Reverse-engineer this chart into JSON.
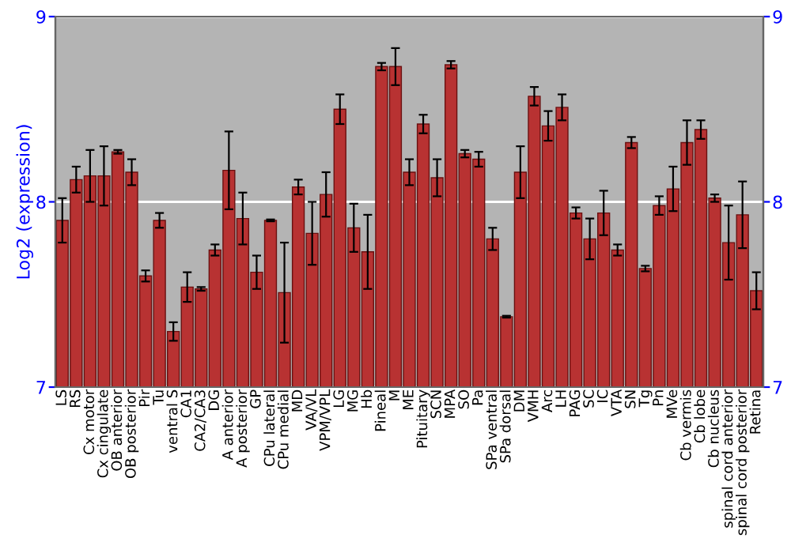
{
  "chart_data": {
    "type": "bar",
    "ylabel": "Log2 (expression)",
    "categories": [
      "LS",
      "RS",
      "Cx motor",
      "Cx cingulate",
      "OB anterior",
      "OB posterior",
      "Pir",
      "Tu",
      "ventral S",
      "CA1",
      "CA2/CA3",
      "DG",
      "A anterior",
      "A posterior",
      "GP",
      "CPu lateral",
      "CPu medial",
      "MD",
      "VA/VL",
      "VPM/VPL",
      "LG",
      "MG",
      "Hb",
      "Pineal",
      "M",
      "ME",
      "Pituitary",
      "SCN",
      "MPA",
      "SO",
      "Pa",
      "SPa ventral",
      "SPa dorsal",
      "DM",
      "VMH",
      "Arc",
      "LH",
      "PAG",
      "SC",
      "IC",
      "VTA",
      "SN",
      "Tg",
      "Pn",
      "MVe",
      "Cb vermis",
      "Cb lobe",
      "Cb nucleus",
      "spinal cord anterior",
      "spinal cord posterior",
      "Retina"
    ],
    "series": [
      {
        "color": "#b83232",
        "values": [
          7.9,
          8.12,
          8.14,
          8.14,
          8.27,
          8.16,
          7.6,
          7.9,
          7.3,
          7.54,
          7.53,
          7.74,
          8.17,
          7.91,
          7.62,
          7.9,
          7.51,
          8.08,
          7.83,
          8.04,
          8.5,
          7.86,
          7.73,
          8.73,
          8.73,
          8.16,
          8.42,
          8.13,
          8.74,
          8.26,
          8.23,
          7.8,
          7.38,
          8.16,
          8.57,
          8.41,
          8.51,
          7.94,
          7.8,
          7.94,
          7.74,
          8.32,
          7.64,
          7.98,
          8.07,
          8.32,
          8.39,
          8.02,
          7.78,
          7.93,
          7.52
        ],
        "errors": [
          0.12,
          0.07,
          0.14,
          0.16,
          0.01,
          0.07,
          0.03,
          0.04,
          0.05,
          0.08,
          0.01,
          0.03,
          0.21,
          0.14,
          0.09,
          0.005,
          0.27,
          0.04,
          0.17,
          0.12,
          0.08,
          0.13,
          0.2,
          0.02,
          0.1,
          0.07,
          0.05,
          0.1,
          0.02,
          0.02,
          0.04,
          0.06,
          0.005,
          0.14,
          0.05,
          0.08,
          0.07,
          0.03,
          0.11,
          0.12,
          0.03,
          0.03,
          0.015,
          0.05,
          0.12,
          0.12,
          0.05,
          0.02,
          0.2,
          0.18,
          0.1
        ]
      }
    ],
    "ylim": [
      7,
      9
    ],
    "yticks": [
      7,
      8,
      9
    ],
    "y2lim": [
      7,
      9
    ],
    "y2ticks": [
      7,
      8,
      9
    ],
    "grid": "y",
    "legend": false
  }
}
